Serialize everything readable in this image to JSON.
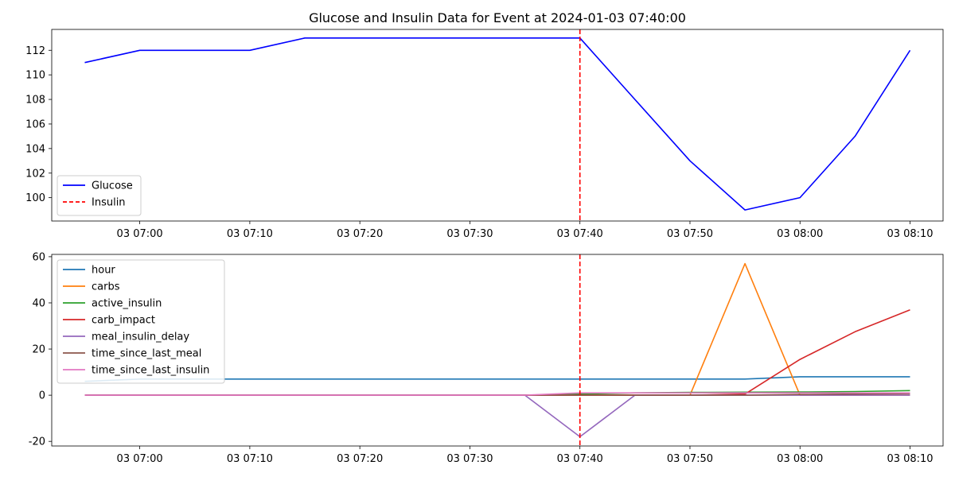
{
  "chart_data": [
    {
      "type": "line",
      "title": "Glucose and Insulin Data for Event at 2024-01-03 07:40:00",
      "x_range": [
        "2024-01-03 06:52:00",
        "2024-01-03 08:13:00"
      ],
      "ylim": [
        98.1,
        113.7
      ],
      "x_ticks": [
        "03 07:00",
        "03 07:10",
        "03 07:20",
        "03 07:30",
        "03 07:40",
        "03 07:50",
        "03 08:00",
        "03 08:10"
      ],
      "y_ticks": [
        100,
        102,
        104,
        106,
        108,
        110,
        112
      ],
      "x": [
        "2024-01-03 06:55:00",
        "2024-01-03 07:00:00",
        "2024-01-03 07:05:00",
        "2024-01-03 07:10:00",
        "2024-01-03 07:15:00",
        "2024-01-03 07:20:00",
        "2024-01-03 07:25:00",
        "2024-01-03 07:30:00",
        "2024-01-03 07:35:00",
        "2024-01-03 07:40:00",
        "2024-01-03 07:45:00",
        "2024-01-03 07:50:00",
        "2024-01-03 07:55:00",
        "2024-01-03 08:00:00",
        "2024-01-03 08:05:00",
        "2024-01-03 08:10:00"
      ],
      "series": [
        {
          "name": "Glucose",
          "color": "#0000ff",
          "style": "solid",
          "values": [
            111,
            112,
            112,
            112,
            113,
            113,
            113,
            113,
            113,
            113,
            108,
            103,
            99,
            100,
            105,
            112
          ]
        }
      ],
      "vlines": [
        {
          "name": "Insulin",
          "x": "2024-01-03 07:40:00",
          "color": "#ff0000",
          "style": "dashed"
        }
      ],
      "legend": "lower-left",
      "grid": false
    },
    {
      "type": "line",
      "title": "",
      "x_range": [
        "2024-01-03 06:52:00",
        "2024-01-03 08:13:00"
      ],
      "ylim": [
        -22,
        61
      ],
      "x_ticks": [
        "03 07:00",
        "03 07:10",
        "03 07:20",
        "03 07:30",
        "03 07:40",
        "03 07:50",
        "03 08:00",
        "03 08:10"
      ],
      "y_ticks": [
        -20,
        0,
        20,
        40,
        60
      ],
      "x": [
        "2024-01-03 06:55:00",
        "2024-01-03 07:00:00",
        "2024-01-03 07:05:00",
        "2024-01-03 07:10:00",
        "2024-01-03 07:15:00",
        "2024-01-03 07:20:00",
        "2024-01-03 07:25:00",
        "2024-01-03 07:30:00",
        "2024-01-03 07:35:00",
        "2024-01-03 07:40:00",
        "2024-01-03 07:45:00",
        "2024-01-03 07:50:00",
        "2024-01-03 07:55:00",
        "2024-01-03 08:00:00",
        "2024-01-03 08:05:00",
        "2024-01-03 08:10:00"
      ],
      "series": [
        {
          "name": "hour",
          "color": "#1f77b4",
          "values": [
            6,
            7,
            7,
            7,
            7,
            7,
            7,
            7,
            7,
            7,
            7,
            7,
            7,
            8,
            8,
            8
          ]
        },
        {
          "name": "carbs",
          "color": "#ff7f0e",
          "values": [
            0,
            0,
            0,
            0,
            0,
            0,
            0,
            0,
            0,
            0,
            0,
            0,
            57,
            0,
            0,
            0
          ]
        },
        {
          "name": "active_insulin",
          "color": "#2ca02c",
          "values": [
            0,
            0,
            0,
            0,
            0,
            0,
            0,
            0,
            0,
            0.5,
            1,
            1.2,
            1.3,
            1.4,
            1.6,
            2
          ]
        },
        {
          "name": "carb_impact",
          "color": "#d62728",
          "values": [
            0,
            0,
            0,
            0,
            0,
            0,
            0,
            0,
            0,
            0,
            0,
            0,
            0.5,
            15.5,
            27.5,
            37
          ]
        },
        {
          "name": "meal_insulin_delay",
          "color": "#9467bd",
          "values": [
            0,
            0,
            0,
            0,
            0,
            0,
            0,
            0,
            0,
            -18,
            0,
            0,
            0,
            0,
            0,
            0
          ]
        },
        {
          "name": "time_since_last_meal",
          "color": "#8c564b",
          "values": [
            0,
            0,
            0,
            0,
            0,
            0,
            0,
            0,
            0,
            0,
            0,
            0,
            0,
            0.3,
            0.5,
            0.7
          ]
        },
        {
          "name": "time_since_last_insulin",
          "color": "#e377c2",
          "values": [
            0,
            0,
            0,
            0,
            0,
            0,
            0,
            0,
            0,
            1,
            1,
            1,
            1,
            1,
            1,
            1
          ]
        }
      ],
      "vlines": [
        {
          "name": "Insulin",
          "x": "2024-01-03 07:40:00",
          "color": "#ff0000",
          "style": "dashed"
        }
      ],
      "legend": "upper-left",
      "grid": false
    }
  ]
}
